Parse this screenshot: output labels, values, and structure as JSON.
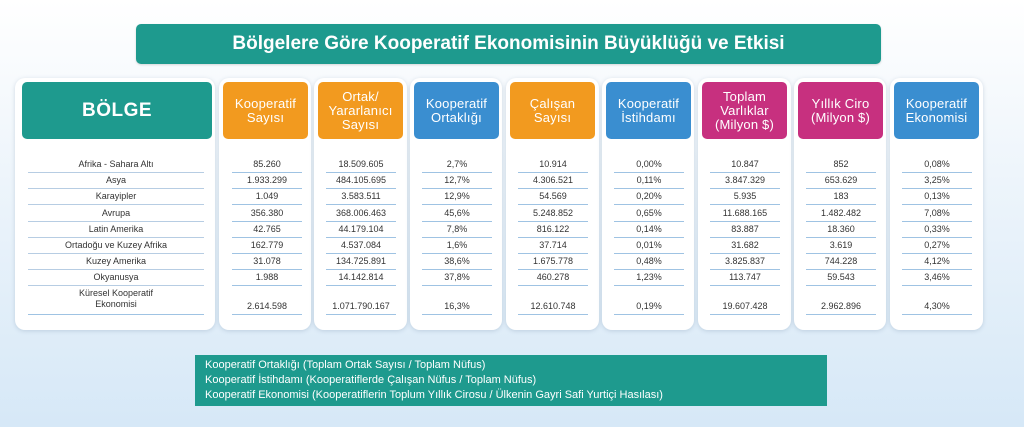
{
  "title": "Bölgelere Göre Kooperatif Ekonomisinin Büyüklüğü ve Etkisi",
  "colors": {
    "teal": "#1e9a8e",
    "orange": "#f29a1f",
    "blue": "#3a8ed0",
    "magenta": "#c7307f"
  },
  "columns": [
    {
      "header": "BÖLGE",
      "color": "teal"
    },
    {
      "header": "Kooperatif\nSayısı",
      "color": "orange"
    },
    {
      "header": "Ortak/\nYararlanıcı\nSayısı",
      "color": "orange"
    },
    {
      "header": "Kooperatif\nOrtaklığı",
      "color": "blue"
    },
    {
      "header": "Çalışan\nSayısı",
      "color": "orange"
    },
    {
      "header": "Kooperatif\nİstihdamı",
      "color": "blue"
    },
    {
      "header": "Toplam\nVarlıklar\n(Milyon  $)",
      "color": "magenta"
    },
    {
      "header": "Yıllık Ciro\n(Milyon $)",
      "color": "magenta"
    },
    {
      "header": "Kooperatif\nEkonomisi",
      "color": "blue"
    }
  ],
  "rows": [
    [
      "Afrika - Sahara Altı",
      "85.260",
      "18.509.605",
      "2,7%",
      "10.914",
      "0,00%",
      "10.847",
      "852",
      "0,08%"
    ],
    [
      "Asya",
      "1.933.299",
      "484.105.695",
      "12,7%",
      "4.306.521",
      "0,11%",
      "3.847.329",
      "653.629",
      "3,25%"
    ],
    [
      "Karayipler",
      "1.049",
      "3.583.511",
      "12,9%",
      "54.569",
      "0,20%",
      "5.935",
      "183",
      "0,13%"
    ],
    [
      "Avrupa",
      "356.380",
      "368.006.463",
      "45,6%",
      "5.248.852",
      "0,65%",
      "11.688.165",
      "1.482.482",
      "7,08%"
    ],
    [
      "Latin Amerika",
      "42.765",
      "44.179.104",
      "7,8%",
      "816.122",
      "0,14%",
      "83.887",
      "18.360",
      "0,33%"
    ],
    [
      "Ortadoğu ve Kuzey Afrika",
      "162.779",
      "4.537.084",
      "1,6%",
      "37.714",
      "0,01%",
      "31.682",
      "3.619",
      "0,27%"
    ],
    [
      "Kuzey Amerika",
      "31.078",
      "134.725.891",
      "38,6%",
      "1.675.778",
      "0,48%",
      "3.825.837",
      "744.228",
      "4,12%"
    ],
    [
      "Okyanusya",
      "1.988",
      "14.142.814",
      "37,8%",
      "460.278",
      "1,23%",
      "113.747",
      "59.543",
      "3,46%"
    ],
    [
      "Küresel Kooperatif\nEkonomisi",
      "2.614.598",
      "1.071.790.167",
      "16,3%",
      "12.610.748",
      "0,19%",
      "19.607.428",
      "2.962.896",
      "4,30%"
    ]
  ],
  "legend": [
    "Kooperatif Ortaklığı (Toplam Ortak Sayısı / Toplam Nüfus)",
    "Kooperatif İstihdamı (Kooperatiflerde Çalışan Nüfus / Toplam Nüfus)",
    "Kooperatif Ekonomisi (Kooperatiflerin Toplum Yıllık Cirosu / Ülkenin Gayri Safi Yurtiçi Hasılası)"
  ]
}
